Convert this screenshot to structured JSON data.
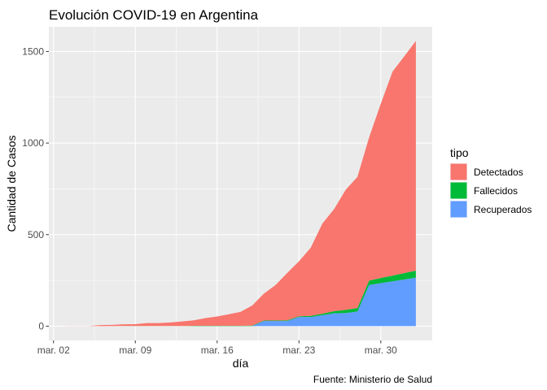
{
  "chart_data": {
    "type": "area",
    "stacked": true,
    "title": "Evolución COVID-19 en Argentina",
    "xlabel": "día",
    "ylabel": "Cantidad de Casos",
    "caption": "Fuente: Ministerio de Salud",
    "legend_title": "tipo",
    "legend_position": "right",
    "grid": true,
    "x_ticks": [
      {
        "day": 2,
        "label": "mar. 02"
      },
      {
        "day": 9,
        "label": "mar. 09"
      },
      {
        "day": 16,
        "label": "mar. 16"
      },
      {
        "day": 23,
        "label": "mar. 23"
      },
      {
        "day": 30,
        "label": "mar. 30"
      }
    ],
    "y_ticks": [
      0,
      500,
      1000,
      1500
    ],
    "xlim": [
      1.6,
      34.4
    ],
    "ylim": [
      -78,
      1635
    ],
    "x": [
      3,
      4,
      5,
      6,
      7,
      8,
      9,
      10,
      11,
      12,
      13,
      14,
      15,
      16,
      17,
      18,
      19,
      20,
      21,
      22,
      23,
      24,
      25,
      26,
      27,
      28,
      29,
      30,
      31,
      32,
      33
    ],
    "series": [
      {
        "name": "Recuperados",
        "color": "#619cff",
        "values": [
          0,
          0,
          0,
          0,
          0,
          0,
          0,
          0,
          0,
          0,
          0,
          0,
          0,
          0,
          0,
          0,
          0,
          28,
          28,
          28,
          50,
          50,
          60,
          70,
          72,
          80,
          225,
          235,
          245,
          255,
          265
        ]
      },
      {
        "name": "Fallecidos",
        "color": "#00ba38",
        "values": [
          0,
          0,
          0,
          0,
          0,
          1,
          1,
          1,
          1,
          1,
          1,
          2,
          2,
          2,
          2,
          2,
          3,
          3,
          3,
          4,
          4,
          6,
          8,
          12,
          17,
          19,
          24,
          28,
          31,
          35,
          38
        ]
      },
      {
        "name": "Detectados",
        "color": "#f8766d",
        "values": [
          1,
          1,
          1,
          6,
          7,
          9,
          10,
          16,
          16,
          19,
          25,
          30,
          42,
          51,
          63,
          76,
          110,
          147,
          194,
          259,
          300,
          372,
          492,
          557,
          656,
          716,
          782,
          952,
          1114,
          1183,
          1255
        ]
      }
    ]
  }
}
